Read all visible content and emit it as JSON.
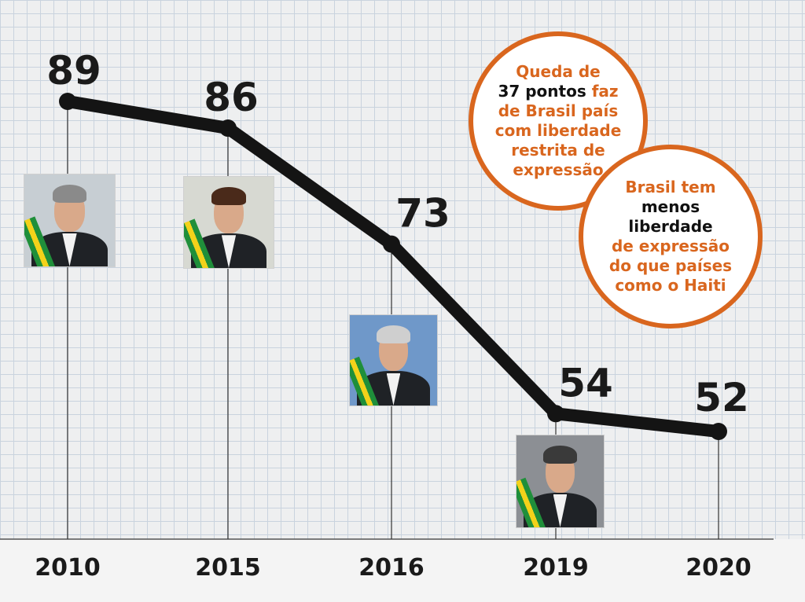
{
  "chart_data": {
    "type": "line",
    "title": "",
    "xlabel": "",
    "ylabel": "",
    "categories": [
      "2010",
      "2015",
      "2016",
      "2019",
      "2020"
    ],
    "values": [
      89,
      86,
      73,
      54,
      52
    ],
    "grid": true,
    "legend": "none"
  },
  "colors": {
    "line": "#141414",
    "accent": "#d9661e",
    "grid": "#c9d3de",
    "background": "#eeeff0"
  },
  "portraits": [
    {
      "year": "2010",
      "icon": "president-portrait-icon",
      "bg": "#c7ced3",
      "hair": "#8a8a8a"
    },
    {
      "year": "2015",
      "icon": "president-portrait-icon",
      "bg": "#d7d9d2",
      "hair": "#4a2a1a"
    },
    {
      "year": "2016",
      "icon": "president-portrait-icon",
      "bg": "#6f98c9",
      "hair": "#cfcfcf"
    },
    {
      "year": "2019",
      "icon": "president-portrait-icon",
      "bg": "#8c8f94",
      "hair": "#3a3a3a"
    }
  ],
  "callouts": {
    "bubble1": {
      "part1": "Queda de",
      "part2": "37 pontos",
      "part3": "faz de Brasil país com liberdade restrita de expressão"
    },
    "bubble2": {
      "part1": "Brasil tem",
      "part2": "menos liberdade",
      "part3": "de expressão do que países como o Haiti"
    }
  }
}
